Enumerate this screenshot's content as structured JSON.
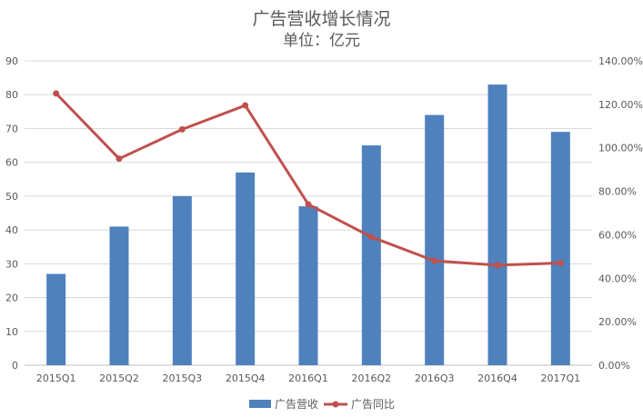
{
  "chart_data": {
    "type": "bar+line",
    "title": "广告营收增长情况",
    "subtitle": "单位：亿元",
    "categories": [
      "2015Q1",
      "2015Q2",
      "2015Q3",
      "2015Q4",
      "2016Q1",
      "2016Q2",
      "2016Q3",
      "2016Q4",
      "2017Q1"
    ],
    "series": [
      {
        "name": "广告营收",
        "type": "bar",
        "axis": "left",
        "color": "#4F81BD",
        "values": [
          27,
          41,
          50,
          57,
          47,
          65,
          74,
          83,
          69
        ]
      },
      {
        "name": "广告同比",
        "type": "line",
        "axis": "right",
        "color": "#C0504D",
        "values": [
          1.25,
          0.95,
          1.085,
          1.195,
          0.74,
          0.59,
          0.48,
          0.46,
          0.47
        ]
      }
    ],
    "left_axis": {
      "min": 0,
      "max": 90,
      "ticks": [
        "0",
        "10",
        "20",
        "30",
        "40",
        "50",
        "60",
        "70",
        "80",
        "90"
      ]
    },
    "right_axis": {
      "min": 0,
      "max": 1.4,
      "ticks": [
        "0.00%",
        "20.00%",
        "40.00%",
        "60.00%",
        "80.00%",
        "100.00%",
        "120.00%",
        "140.00%"
      ]
    },
    "grid": true,
    "legend": "bottom"
  }
}
